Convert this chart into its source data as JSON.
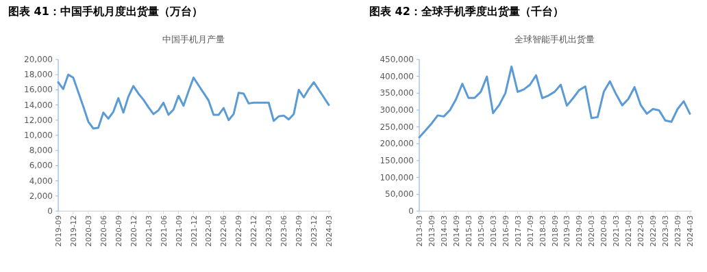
{
  "chart_data": [
    {
      "type": "line",
      "title": "图表 41：中国手机月度出货量（万台）",
      "subtitle": "中国手机月产量",
      "color": "#5b9bd5",
      "categories": [
        "2019-09",
        null,
        null,
        "2019-12",
        null,
        null,
        "2020-03",
        null,
        null,
        "2020-06",
        null,
        null,
        "2020-09",
        null,
        null,
        "2020-12",
        null,
        null,
        "2021-03",
        null,
        null,
        "2021-06",
        null,
        null,
        "2021-09",
        null,
        null,
        "2021-12",
        null,
        null,
        "2022-03",
        null,
        null,
        "2022-06",
        null,
        null,
        "2022-09",
        null,
        null,
        "2022-12",
        null,
        null,
        "2023-03",
        null,
        null,
        "2023-06",
        null,
        null,
        "2023-09",
        null,
        null,
        "2023-12",
        null,
        null,
        "2024-03"
      ],
      "values": [
        17000,
        16100,
        18000,
        17600,
        15700,
        13800,
        11800,
        10900,
        11000,
        13000,
        12200,
        13100,
        14900,
        13000,
        15100,
        16500,
        15500,
        14700,
        13700,
        12800,
        13300,
        14300,
        12700,
        13400,
        15200,
        13900,
        15800,
        17600,
        16600,
        15600,
        14600,
        12700,
        12700,
        13600,
        12000,
        12800,
        15600,
        15500,
        14200,
        14300,
        14300,
        14300,
        14300,
        11900,
        12500,
        12600,
        12100,
        12800,
        16000,
        15000,
        16100,
        17000,
        16000,
        15000,
        14000
      ],
      "ylim": [
        0,
        20000
      ],
      "yticks": [
        {
          "value": 0,
          "label": "0"
        },
        {
          "value": 2000,
          "label": "2,000"
        },
        {
          "value": 4000,
          "label": "4,000"
        },
        {
          "value": 6000,
          "label": "6,000"
        },
        {
          "value": 8000,
          "label": "8,000"
        },
        {
          "value": 10000,
          "label": "10,000"
        },
        {
          "value": 12000,
          "label": "12,000"
        },
        {
          "value": 14000,
          "label": "14,000"
        },
        {
          "value": 16000,
          "label": "16,000"
        },
        {
          "value": 18000,
          "label": "18,000"
        },
        {
          "value": 20000,
          "label": "20,000"
        }
      ]
    },
    {
      "type": "line",
      "title": "图表 42：全球手机季度出货量（千台）",
      "subtitle": "全球智能手机出货量",
      "color": "#5b9bd5",
      "categories": [
        "2013-03",
        null,
        "2013-09",
        null,
        "2014-03",
        null,
        "2014-09",
        null,
        "2015-03",
        null,
        "2015-09",
        null,
        "2016-03",
        null,
        "2016-09",
        null,
        "2017-03",
        null,
        "2017-09",
        null,
        "2018-03",
        null,
        "2018-09",
        null,
        "2019-03",
        null,
        "2019-09",
        null,
        "2020-03",
        null,
        "2020-09",
        null,
        "2021-03",
        null,
        "2021-09",
        null,
        "2022-03",
        null,
        "2022-09",
        null,
        "2023-03",
        null,
        "2023-09",
        null,
        "2024-03"
      ],
      "values": [
        219000,
        239000,
        260000,
        284000,
        281000,
        300000,
        333000,
        378000,
        336000,
        336000,
        354000,
        399000,
        291000,
        315000,
        350000,
        429000,
        354000,
        361000,
        375000,
        403000,
        335000,
        343000,
        354000,
        375000,
        313000,
        335000,
        359000,
        370000,
        276000,
        279000,
        354000,
        385000,
        347000,
        314000,
        333000,
        368000,
        315000,
        289000,
        303000,
        299000,
        269000,
        265000,
        303000,
        326000,
        289000
      ],
      "ylim": [
        0,
        450000
      ],
      "yticks": [
        {
          "value": 0,
          "label": "0"
        },
        {
          "value": 50000,
          "label": "50,000"
        },
        {
          "value": 100000,
          "label": "100,000"
        },
        {
          "value": 150000,
          "label": "150,000"
        },
        {
          "value": 200000,
          "label": "200,000"
        },
        {
          "value": 250000,
          "label": "250,000"
        },
        {
          "value": 300000,
          "label": "300,000"
        },
        {
          "value": 350000,
          "label": "350,000"
        },
        {
          "value": 400000,
          "label": "400,000"
        },
        {
          "value": 450000,
          "label": "450,000"
        }
      ]
    }
  ]
}
